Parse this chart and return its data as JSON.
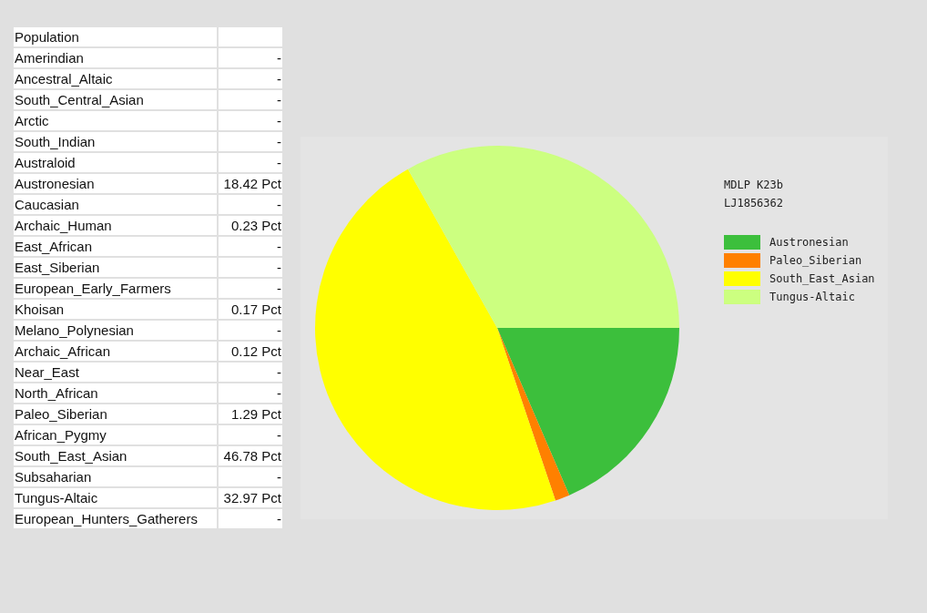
{
  "chart_data": [
    {
      "type": "other",
      "title": "Population",
      "categories": [
        "Amerindian",
        "Ancestral_Altaic",
        "South_Central_Asian",
        "Arctic",
        "South_Indian",
        "Australoid",
        "Austronesian",
        "Caucasian",
        "Archaic_Human",
        "East_African",
        "East_Siberian",
        "European_Early_Farmers",
        "Khoisan",
        "Melano_Polynesian",
        "Archaic_African",
        "Near_East",
        "North_African",
        "Paleo_Siberian",
        "African_Pygmy",
        "South_East_Asian",
        "Subsaharian",
        "Tungus-Altaic",
        "European_Hunters_Gatherers"
      ],
      "value_labels": [
        "-",
        "-",
        "-",
        "-",
        "-",
        "-",
        "18.42 Pct",
        "-",
        "0.23 Pct",
        "-",
        "-",
        "-",
        "0.17 Pct",
        "-",
        "0.12 Pct",
        "-",
        "-",
        "1.29 Pct",
        "-",
        "46.78 Pct",
        "-",
        "32.97 Pct",
        "-"
      ]
    },
    {
      "type": "pie",
      "title": "MDLP K23b",
      "subtitle": "LJ1856362",
      "legend": "right",
      "categories": [
        "Austronesian",
        "Paleo_Siberian",
        "South_East_Asian",
        "Tungus-Altaic"
      ],
      "values": [
        18.42,
        1.29,
        46.78,
        32.97
      ],
      "colors": [
        "#3cbf3c",
        "#ff8000",
        "#ffff00",
        "#ccff80"
      ]
    }
  ]
}
